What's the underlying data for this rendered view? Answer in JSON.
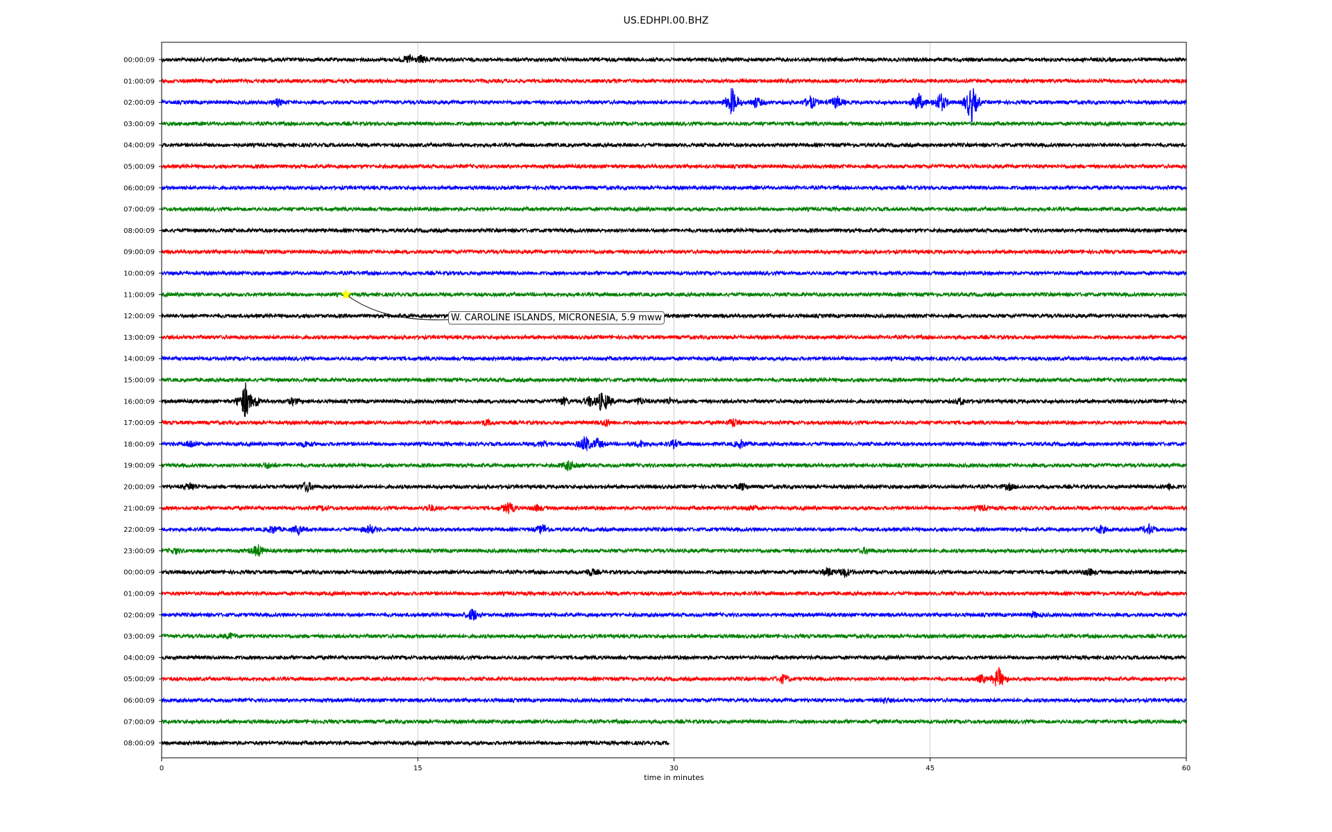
{
  "chart_data": {
    "type": "line",
    "title": "US.EDHPI.00.BHZ",
    "xlabel": "time in minutes",
    "ylabel": "",
    "xlim": [
      0,
      60
    ],
    "x_ticks": [
      "0",
      "15",
      "30",
      "45",
      "60"
    ],
    "grid": "vertical lines at x ticks",
    "colors_cycle": [
      "#000000",
      "#ff0000",
      "#0000ff",
      "#008000"
    ],
    "series": [
      {
        "label": "00:00:09",
        "end_minute": 60,
        "events": [
          {
            "t": 14.5,
            "amp": 0.45
          },
          {
            "t": 15.2,
            "amp": 0.35
          }
        ]
      },
      {
        "label": "01:00:09",
        "end_minute": 60,
        "events": []
      },
      {
        "label": "02:00:09",
        "end_minute": 60,
        "events": [
          {
            "t": 6.8,
            "amp": 0.3
          },
          {
            "t": 33.4,
            "amp": 1.4
          },
          {
            "t": 34.8,
            "amp": 0.5
          },
          {
            "t": 38.0,
            "amp": 0.6
          },
          {
            "t": 39.5,
            "amp": 0.6
          },
          {
            "t": 44.3,
            "amp": 0.9
          },
          {
            "t": 45.6,
            "amp": 1.0
          },
          {
            "t": 47.4,
            "amp": 2.0
          }
        ]
      },
      {
        "label": "03:00:09",
        "end_minute": 60,
        "events": []
      },
      {
        "label": "04:00:09",
        "end_minute": 60,
        "events": []
      },
      {
        "label": "05:00:09",
        "end_minute": 60,
        "events": []
      },
      {
        "label": "06:00:09",
        "end_minute": 60,
        "events": []
      },
      {
        "label": "07:00:09",
        "end_minute": 60,
        "events": []
      },
      {
        "label": "08:00:09",
        "end_minute": 60,
        "events": []
      },
      {
        "label": "09:00:09",
        "end_minute": 60,
        "events": []
      },
      {
        "label": "10:00:09",
        "end_minute": 60,
        "events": []
      },
      {
        "label": "11:00:09",
        "end_minute": 60,
        "events": []
      },
      {
        "label": "12:00:09",
        "end_minute": 60,
        "events": []
      },
      {
        "label": "13:00:09",
        "end_minute": 60,
        "events": []
      },
      {
        "label": "14:00:09",
        "end_minute": 60,
        "events": []
      },
      {
        "label": "15:00:09",
        "end_minute": 60,
        "events": []
      },
      {
        "label": "16:00:09",
        "end_minute": 60,
        "events": [
          {
            "t": 4.9,
            "amp": 1.8
          },
          {
            "t": 5.5,
            "amp": 0.5
          },
          {
            "t": 7.7,
            "amp": 0.3
          },
          {
            "t": 23.5,
            "amp": 0.35
          },
          {
            "t": 25.1,
            "amp": 0.5
          },
          {
            "t": 25.7,
            "amp": 0.8
          },
          {
            "t": 26.0,
            "amp": 0.7
          },
          {
            "t": 28.0,
            "amp": 0.3
          },
          {
            "t": 29.7,
            "amp": 0.25
          },
          {
            "t": 46.8,
            "amp": 0.3
          }
        ]
      },
      {
        "label": "17:00:09",
        "end_minute": 60,
        "events": [
          {
            "t": 19.0,
            "amp": 0.25
          },
          {
            "t": 26.0,
            "amp": 0.3
          },
          {
            "t": 33.5,
            "amp": 0.4
          }
        ]
      },
      {
        "label": "18:00:09",
        "end_minute": 60,
        "events": [
          {
            "t": 1.7,
            "amp": 0.35
          },
          {
            "t": 8.4,
            "amp": 0.25
          },
          {
            "t": 22.3,
            "amp": 0.3
          },
          {
            "t": 24.8,
            "amp": 0.8
          },
          {
            "t": 25.5,
            "amp": 0.5
          },
          {
            "t": 28.0,
            "amp": 0.3
          },
          {
            "t": 30.0,
            "amp": 0.35
          },
          {
            "t": 33.9,
            "amp": 0.35
          }
        ]
      },
      {
        "label": "19:00:09",
        "end_minute": 60,
        "events": [
          {
            "t": 6.2,
            "amp": 0.25
          },
          {
            "t": 23.8,
            "amp": 0.45
          },
          {
            "t": 24.2,
            "amp": 0.3
          }
        ]
      },
      {
        "label": "20:00:09",
        "end_minute": 60,
        "events": [
          {
            "t": 1.7,
            "amp": 0.35
          },
          {
            "t": 8.5,
            "amp": 0.5
          },
          {
            "t": 34.0,
            "amp": 0.3
          },
          {
            "t": 49.6,
            "amp": 0.25
          },
          {
            "t": 59.0,
            "amp": 0.25
          }
        ]
      },
      {
        "label": "21:00:09",
        "end_minute": 60,
        "events": [
          {
            "t": 9.5,
            "amp": 0.2
          },
          {
            "t": 15.7,
            "amp": 0.3
          },
          {
            "t": 20.3,
            "amp": 0.55
          },
          {
            "t": 22.0,
            "amp": 0.25
          },
          {
            "t": 34.5,
            "amp": 0.25
          },
          {
            "t": 48.0,
            "amp": 0.25
          }
        ]
      },
      {
        "label": "22:00:09",
        "end_minute": 60,
        "events": [
          {
            "t": 6.5,
            "amp": 0.35
          },
          {
            "t": 8.0,
            "amp": 0.35
          },
          {
            "t": 12.2,
            "amp": 0.4
          },
          {
            "t": 22.3,
            "amp": 0.45
          },
          {
            "t": 55.0,
            "amp": 0.35
          },
          {
            "t": 57.8,
            "amp": 0.45
          }
        ]
      },
      {
        "label": "23:00:09",
        "end_minute": 60,
        "events": [
          {
            "t": 0.8,
            "amp": 0.25
          },
          {
            "t": 5.6,
            "amp": 0.6
          },
          {
            "t": 41.2,
            "amp": 0.25
          }
        ]
      },
      {
        "label": "00:00:09",
        "end_minute": 60,
        "events": [
          {
            "t": 25.1,
            "amp": 0.3
          },
          {
            "t": 39.0,
            "amp": 0.4
          },
          {
            "t": 40.0,
            "amp": 0.45
          },
          {
            "t": 54.3,
            "amp": 0.3
          }
        ]
      },
      {
        "label": "01:00:09",
        "end_minute": 60,
        "events": []
      },
      {
        "label": "02:00:09",
        "end_minute": 60,
        "events": [
          {
            "t": 18.2,
            "amp": 0.6
          },
          {
            "t": 51.1,
            "amp": 0.2
          }
        ]
      },
      {
        "label": "03:00:09",
        "end_minute": 60,
        "events": [
          {
            "t": 4.0,
            "amp": 0.25
          }
        ]
      },
      {
        "label": "04:00:09",
        "end_minute": 60,
        "events": []
      },
      {
        "label": "05:00:09",
        "end_minute": 60,
        "events": [
          {
            "t": 36.4,
            "amp": 0.4
          },
          {
            "t": 48.0,
            "amp": 0.35
          },
          {
            "t": 49.0,
            "amp": 1.1
          }
        ]
      },
      {
        "label": "06:00:09",
        "end_minute": 60,
        "events": [
          {
            "t": 42.3,
            "amp": 0.2
          }
        ]
      },
      {
        "label": "07:00:09",
        "end_minute": 60,
        "events": []
      },
      {
        "label": "08:00:09",
        "end_minute": 29.7,
        "events": []
      }
    ],
    "annotations": [
      {
        "text": "W. CAROLINE ISLANDS, MICRONESIA, 5.9 mww",
        "row": 11,
        "t": 10.8,
        "marker": "star",
        "marker_color": "#ffff00"
      }
    ]
  }
}
